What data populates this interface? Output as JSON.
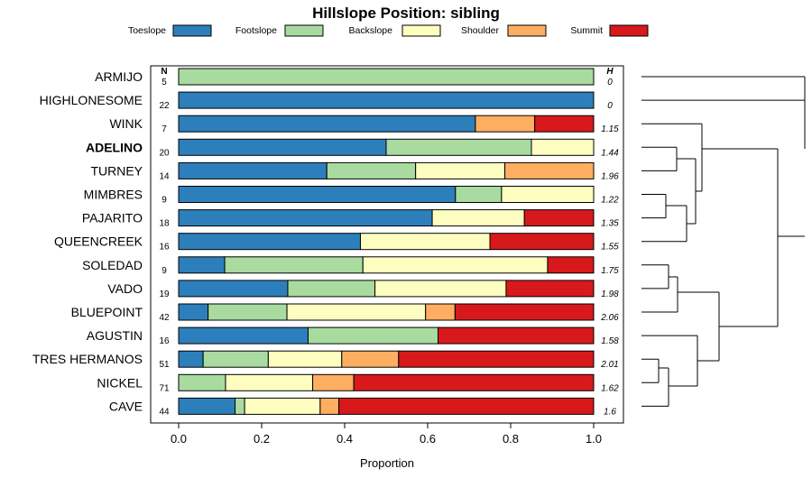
{
  "chart_data": {
    "type": "bar",
    "orientation": "horizontal-stacked",
    "title": "Hillslope Position: sibling",
    "xlabel": "Proportion",
    "ylabel": "",
    "xlim": [
      0,
      1
    ],
    "xticks": [
      "0.0",
      "0.2",
      "0.4",
      "0.6",
      "0.8",
      "1.0"
    ],
    "legend": [
      {
        "name": "Toeslope",
        "color": "#2d7fbb"
      },
      {
        "name": "Footslope",
        "color": "#a9dba0"
      },
      {
        "name": "Backslope",
        "color": "#fefec0"
      },
      {
        "name": "Shoulder",
        "color": "#fdae61"
      },
      {
        "name": "Summit",
        "color": "#d7191c"
      }
    ],
    "n_header": "N",
    "h_header": "H",
    "rows": [
      {
        "name": "ARMIJO",
        "bold": false,
        "n": "5",
        "h": "0",
        "values": [
          0,
          1.0,
          0,
          0,
          0
        ]
      },
      {
        "name": "HIGHLONESOME",
        "bold": false,
        "n": "22",
        "h": "0",
        "values": [
          1.0,
          0,
          0,
          0,
          0
        ]
      },
      {
        "name": "WINK",
        "bold": false,
        "n": "7",
        "h": "1.15",
        "values": [
          0.715,
          0,
          0,
          0.143,
          0.142
        ]
      },
      {
        "name": "ADELINO",
        "bold": true,
        "n": "20",
        "h": "1.44",
        "values": [
          0.5,
          0.35,
          0.15,
          0,
          0
        ]
      },
      {
        "name": "TURNEY",
        "bold": false,
        "n": "14",
        "h": "1.96",
        "values": [
          0.357,
          0.214,
          0.215,
          0.214,
          0
        ]
      },
      {
        "name": "MIMBRES",
        "bold": false,
        "n": "9",
        "h": "1.22",
        "values": [
          0.667,
          0.111,
          0.222,
          0,
          0
        ]
      },
      {
        "name": "PAJARITO",
        "bold": false,
        "n": "18",
        "h": "1.35",
        "values": [
          0.611,
          0,
          0.222,
          0,
          0.167
        ]
      },
      {
        "name": "QUEENCREEK",
        "bold": false,
        "n": "16",
        "h": "1.55",
        "values": [
          0.438,
          0,
          0.312,
          0,
          0.25
        ]
      },
      {
        "name": "SOLEDAD",
        "bold": false,
        "n": "9",
        "h": "1.75",
        "values": [
          0.111,
          0.333,
          0.445,
          0,
          0.111
        ]
      },
      {
        "name": "VADO",
        "bold": false,
        "n": "19",
        "h": "1.98",
        "values": [
          0.263,
          0.21,
          0.316,
          0,
          0.211
        ]
      },
      {
        "name": "BLUEPOINT",
        "bold": false,
        "n": "42",
        "h": "2.06",
        "values": [
          0.071,
          0.19,
          0.334,
          0.071,
          0.334
        ]
      },
      {
        "name": "AGUSTIN",
        "bold": false,
        "n": "16",
        "h": "1.58",
        "values": [
          0.312,
          0.313,
          0,
          0,
          0.375
        ]
      },
      {
        "name": "TRES HERMANOS",
        "bold": false,
        "n": "51",
        "h": "2.01",
        "values": [
          0.059,
          0.157,
          0.177,
          0.137,
          0.47
        ]
      },
      {
        "name": "NICKEL",
        "bold": false,
        "n": "71",
        "h": "1.62",
        "values": [
          0,
          0.113,
          0.21,
          0.099,
          0.578
        ]
      },
      {
        "name": "CAVE",
        "bold": false,
        "n": "44",
        "h": "1.6",
        "values": [
          0.136,
          0.023,
          0.182,
          0.045,
          0.614
        ]
      }
    ]
  }
}
